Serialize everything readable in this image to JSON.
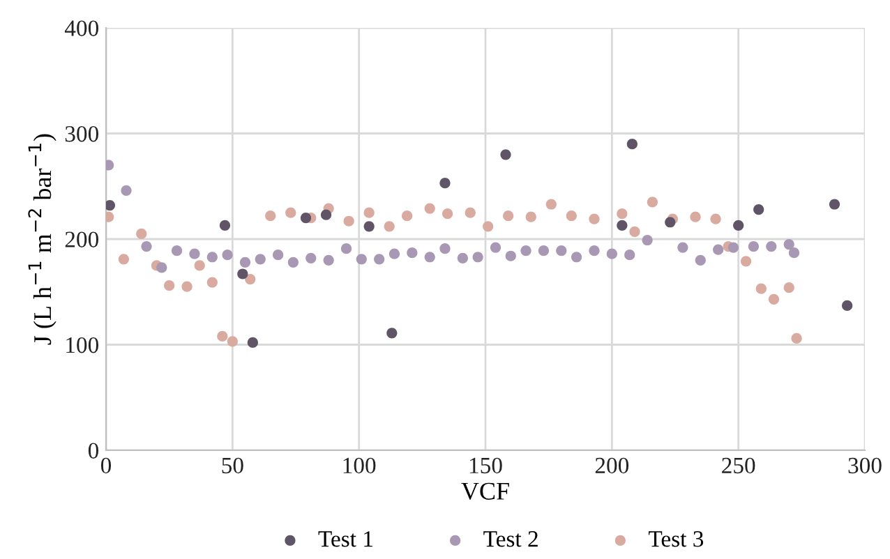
{
  "chart_data": {
    "type": "scatter",
    "xlabel": "VCF",
    "ylabel": "J (L h$^{−1}$ m$^{−2}$ bar$^{−1}$)",
    "xlim": [
      0,
      300
    ],
    "ylim": [
      0,
      400
    ],
    "xticks": [
      0,
      50,
      100,
      150,
      200,
      250,
      300
    ],
    "yticks": [
      0,
      100,
      200,
      300,
      400
    ],
    "grid": true,
    "legend": "bottom",
    "marker": "circle",
    "series": [
      {
        "name": "Test 1",
        "color": "#5f5566",
        "x": [
          1.5,
          47,
          54,
          58,
          79,
          87,
          104,
          113,
          134,
          158,
          204,
          208,
          223,
          250,
          258,
          288,
          293
        ],
        "values": [
          232,
          213,
          167,
          102,
          220,
          223,
          212,
          111,
          253,
          280,
          213,
          290,
          216,
          213,
          228,
          233,
          137
        ]
      },
      {
        "name": "Test 2",
        "color": "#a898b4",
        "x": [
          1,
          8,
          16,
          22,
          28,
          35,
          42,
          48,
          55,
          61,
          68,
          74,
          81,
          88,
          95,
          101,
          108,
          114,
          121,
          128,
          134,
          141,
          147,
          154,
          160,
          166,
          173,
          180,
          186,
          193,
          200,
          207,
          214,
          228,
          235,
          242,
          248,
          256,
          263,
          270,
          272
        ],
        "values": [
          270,
          246,
          193,
          173,
          189,
          186,
          183,
          185,
          178,
          181,
          185,
          178,
          182,
          180,
          191,
          181,
          181,
          186,
          187,
          183,
          191,
          182,
          183,
          192,
          184,
          189,
          189,
          189,
          183,
          189,
          186,
          185,
          199,
          192,
          180,
          190,
          192,
          193,
          193,
          195,
          187
        ]
      },
      {
        "name": "Test 3",
        "color": "#d8aaa0",
        "x": [
          1,
          7,
          14,
          20,
          25,
          32,
          37,
          42,
          46,
          50,
          57,
          65,
          73,
          81,
          88,
          96,
          104,
          112,
          119,
          128,
          135,
          144,
          151,
          159,
          168,
          176,
          184,
          193,
          204,
          209,
          216,
          224,
          233,
          241,
          246,
          253,
          259,
          264,
          270,
          273
        ],
        "values": [
          221,
          181,
          205,
          175,
          156,
          155,
          175,
          159,
          108,
          103,
          162,
          222,
          225,
          220,
          229,
          217,
          225,
          212,
          222,
          229,
          224,
          225,
          212,
          222,
          221,
          233,
          222,
          219,
          224,
          207,
          235,
          219,
          221,
          219,
          193,
          179,
          153,
          143,
          154,
          106
        ]
      }
    ]
  }
}
